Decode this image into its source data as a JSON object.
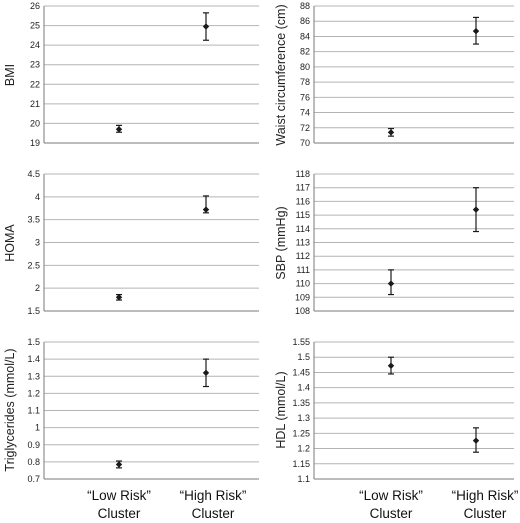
{
  "chart_data": [
    {
      "type": "scatter",
      "ylabel": "BMI",
      "ylim": [
        19,
        26
      ],
      "ystep": 1,
      "categories": [
        "“Low Risk” Cluster",
        "“High Risk” Cluster"
      ],
      "values": [
        19.7,
        24.95
      ],
      "err_low": [
        19.55,
        24.25
      ],
      "err_high": [
        19.9,
        25.65
      ],
      "grid": true
    },
    {
      "type": "scatter",
      "ylabel": "Waist circumference (cm)",
      "ylim": [
        70,
        88
      ],
      "ystep": 2,
      "categories": [
        "“Low Risk” Cluster",
        "“High Risk” Cluster"
      ],
      "values": [
        71.4,
        84.7
      ],
      "err_low": [
        70.9,
        83.0
      ],
      "err_high": [
        71.9,
        86.5
      ],
      "grid": true
    },
    {
      "type": "scatter",
      "ylabel": "HOMA",
      "ylim": [
        1.5,
        4.5
      ],
      "ystep": 0.5,
      "categories": [
        "“Low Risk” Cluster",
        "“High Risk” Cluster"
      ],
      "values": [
        1.8,
        3.72
      ],
      "err_low": [
        1.74,
        3.65
      ],
      "err_high": [
        1.86,
        4.02
      ],
      "grid": true
    },
    {
      "type": "scatter",
      "ylabel": "SBP (mmHg)",
      "ylim": [
        108,
        118
      ],
      "ystep": 1,
      "categories": [
        "“Low Risk” Cluster",
        "“High Risk” Cluster"
      ],
      "values": [
        110.0,
        115.4
      ],
      "err_low": [
        109.2,
        113.8
      ],
      "err_high": [
        111.0,
        117.0
      ],
      "grid": true
    },
    {
      "type": "scatter",
      "ylabel": "Triglycerides (mmol/L)",
      "ylim": [
        0.7,
        1.5
      ],
      "ystep": 0.1,
      "categories": [
        "“Low Risk” Cluster",
        "“High Risk” Cluster"
      ],
      "values": [
        0.785,
        1.32
      ],
      "err_low": [
        0.765,
        1.24
      ],
      "err_high": [
        0.805,
        1.4
      ],
      "grid": true
    },
    {
      "type": "scatter",
      "ylabel": "HDL (mmol/L)",
      "ylim": [
        1.1,
        1.55
      ],
      "ystep": 0.05,
      "categories": [
        "“Low Risk” Cluster",
        "“High Risk” Cluster"
      ],
      "values": [
        1.472,
        1.226
      ],
      "err_low": [
        1.445,
        1.188
      ],
      "err_high": [
        1.5,
        1.268
      ],
      "grid": true
    }
  ],
  "x_categories": [
    {
      "line1": "“Low Risk”",
      "line2": "Cluster"
    },
    {
      "line1": "“High Risk”",
      "line2": "Cluster"
    }
  ],
  "colors": {
    "grid": "#b4b4b4",
    "axis": "#7a7a7a",
    "marker": "#1a1a1a"
  }
}
